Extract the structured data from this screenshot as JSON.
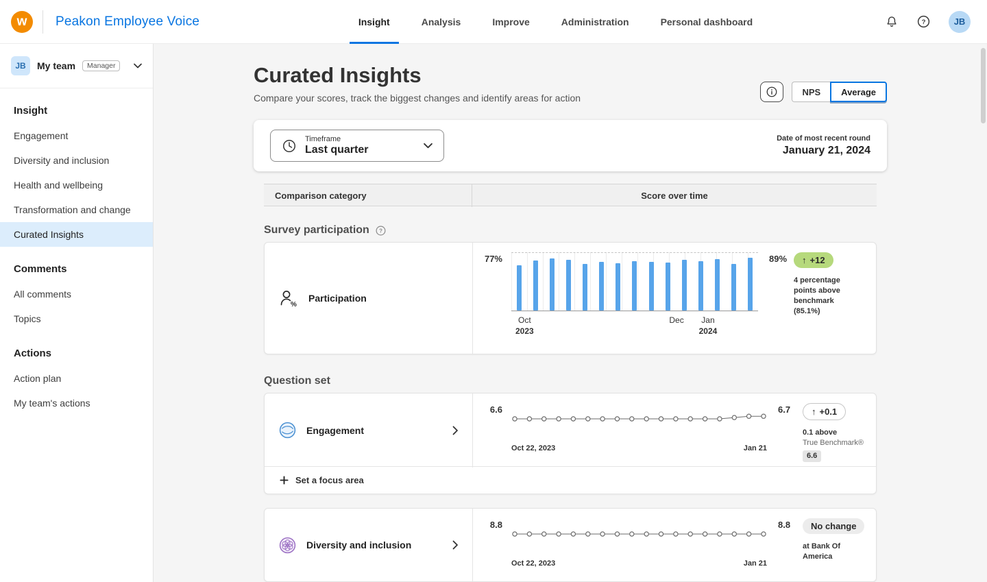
{
  "topbar": {
    "logo_letter": "w",
    "brand": "Peakon Employee Voice",
    "nav": [
      {
        "label": "Insight",
        "active": true
      },
      {
        "label": "Analysis",
        "active": false
      },
      {
        "label": "Improve",
        "active": false
      },
      {
        "label": "Administration",
        "active": false
      },
      {
        "label": "Personal dashboard",
        "active": false
      }
    ],
    "avatar": "JB"
  },
  "sidebar": {
    "team": {
      "initials": "JB",
      "name": "My team",
      "badge": "Manager"
    },
    "sections": [
      {
        "heading": "Insight",
        "items": [
          {
            "label": "Engagement",
            "active": false
          },
          {
            "label": "Diversity and inclusion",
            "active": false
          },
          {
            "label": "Health and wellbeing",
            "active": false
          },
          {
            "label": "Transformation and change",
            "active": false
          },
          {
            "label": "Curated Insights",
            "active": true
          }
        ]
      },
      {
        "heading": "Comments",
        "items": [
          {
            "label": "All comments",
            "active": false
          },
          {
            "label": "Topics",
            "active": false
          }
        ]
      },
      {
        "heading": "Actions",
        "items": [
          {
            "label": "Action plan",
            "active": false
          },
          {
            "label": "My team's actions",
            "active": false
          }
        ]
      }
    ]
  },
  "page": {
    "title": "Curated Insights",
    "subtitle": "Compare your scores, track the biggest changes and identify areas for action",
    "view_toggle": {
      "options": [
        "NPS",
        "Average"
      ],
      "selected": "Average"
    }
  },
  "timeframe": {
    "label": "Timeframe",
    "value": "Last quarter",
    "round_caption": "Date of most recent round",
    "round_date": "January 21, 2024"
  },
  "table_header": {
    "category": "Comparison category",
    "score": "Score over time"
  },
  "participation": {
    "heading": "Survey participation",
    "row": {
      "label": "Participation",
      "start": "77%",
      "end": "89%",
      "badge_arrow": "↑",
      "badge": "+12",
      "note": "4 percentage points above benchmark (85.1%)"
    }
  },
  "question_set": {
    "heading": "Question set",
    "focus_label": "Set a focus area",
    "rows": [
      {
        "label": "Engagement",
        "start": "6.6",
        "end": "6.7",
        "badge_arrow": "↑",
        "badge": "+0.1",
        "note_line1": "0.1 above",
        "note_line2": "True Benchmark®",
        "chip": "6.6"
      },
      {
        "label": "Diversity and inclusion",
        "start": "8.8",
        "end": "8.8",
        "badge": "No change",
        "note": "at Bank Of America"
      }
    ]
  },
  "chart_data": [
    {
      "type": "bar",
      "title": "Participation score over time",
      "values": [
        77,
        85,
        88,
        86,
        79,
        82,
        80,
        84,
        82,
        81,
        86,
        84,
        87,
        79,
        89
      ],
      "start_value": 77,
      "end_value": 89,
      "benchmark": 85.1,
      "ylim": [
        0,
        100
      ],
      "unit": "%",
      "ticks": [
        {
          "line1": "Oct",
          "line2": "2023"
        },
        {
          "line1": "Dec"
        },
        {
          "line1": "Jan",
          "line2": "2024"
        }
      ]
    },
    {
      "type": "line",
      "title": "Engagement score over time",
      "values": [
        6.6,
        6.6,
        6.6,
        6.6,
        6.6,
        6.6,
        6.6,
        6.6,
        6.6,
        6.6,
        6.6,
        6.6,
        6.6,
        6.6,
        6.6,
        6.65,
        6.7,
        6.7
      ],
      "start_value": 6.6,
      "end_value": 6.7,
      "benchmark": 6.6,
      "ylim": [
        6.2,
        7.0
      ],
      "x_start": "Oct 22, 2023",
      "x_end": "Jan 21"
    },
    {
      "type": "line",
      "title": "Diversity and inclusion score over time",
      "values": [
        8.8,
        8.8,
        8.8,
        8.8,
        8.8,
        8.8,
        8.8,
        8.8,
        8.8,
        8.8,
        8.8,
        8.8,
        8.8,
        8.8,
        8.8,
        8.8,
        8.8,
        8.8
      ],
      "start_value": 8.8,
      "end_value": 8.8,
      "ylim": [
        8.4,
        9.2
      ],
      "x_start": "Oct 22, 2023",
      "x_end": "Jan 21"
    }
  ],
  "colors": {
    "accent_blue": "#0875e1",
    "workday_orange": "#f38b00",
    "bar_blue": "#57a4ea",
    "positive_green": "#b6d97c"
  }
}
